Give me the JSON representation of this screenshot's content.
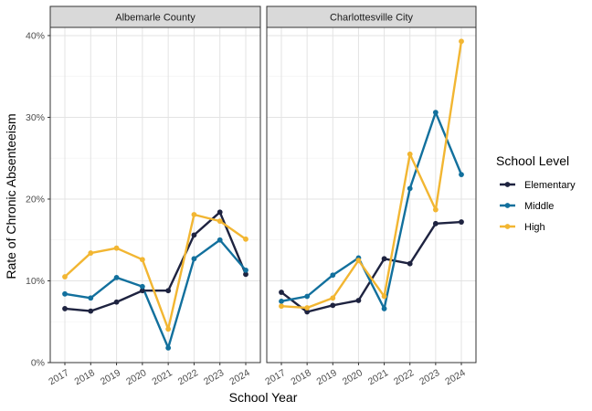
{
  "chart_data": {
    "type": "line",
    "xlabel": "School Year",
    "ylabel": "Rate of Chronic Absenteeism",
    "ylim": [
      0,
      0.41
    ],
    "yticks": [
      0,
      0.1,
      0.2,
      0.3,
      0.4
    ],
    "ytick_labels": [
      "0%",
      "10%",
      "20%",
      "30%",
      "40%"
    ],
    "x": [
      "2017",
      "2018",
      "2019",
      "2020",
      "2021",
      "2022",
      "2023",
      "2024"
    ],
    "grid": true,
    "legend": {
      "title": "School Level",
      "placement": "right",
      "entries": [
        "Elementary",
        "Middle",
        "High"
      ]
    },
    "colors": {
      "Elementary": "#1e2340",
      "Middle": "#12709d",
      "High": "#f2b632"
    },
    "panels": [
      {
        "title": "Albemarle County",
        "series": [
          {
            "name": "Elementary",
            "values": [
              0.066,
              0.063,
              0.074,
              0.088,
              0.088,
              0.156,
              0.184,
              0.108
            ]
          },
          {
            "name": "Middle",
            "values": [
              0.084,
              0.079,
              0.104,
              0.093,
              0.018,
              0.127,
              0.15,
              0.113
            ]
          },
          {
            "name": "High",
            "values": [
              0.105,
              0.134,
              0.14,
              0.126,
              0.041,
              0.181,
              0.173,
              0.151
            ]
          }
        ]
      },
      {
        "title": "Charlottesville City",
        "series": [
          {
            "name": "Elementary",
            "values": [
              0.086,
              0.062,
              0.07,
              0.076,
              0.127,
              0.121,
              0.17,
              0.172
            ]
          },
          {
            "name": "Middle",
            "values": [
              0.075,
              0.081,
              0.107,
              0.128,
              0.066,
              0.213,
              0.306,
              0.23
            ]
          },
          {
            "name": "High",
            "values": [
              0.069,
              0.067,
              0.079,
              0.125,
              0.081,
              0.255,
              0.187,
              0.393
            ]
          }
        ]
      }
    ]
  }
}
